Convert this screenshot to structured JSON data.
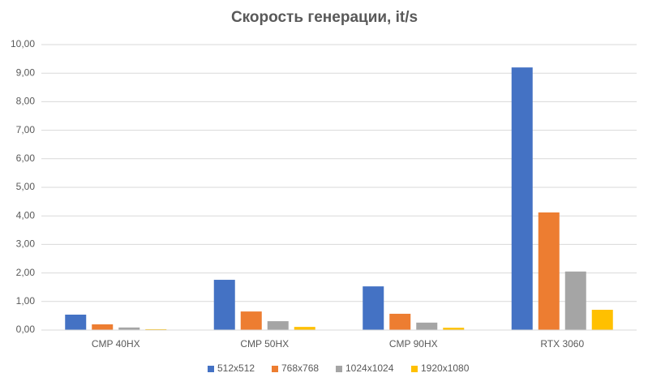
{
  "chart_data": {
    "type": "bar",
    "title": "Скорость генерации, it/s",
    "categories": [
      "CMP 40HX",
      "CMP 50HX",
      "CMP 90HX",
      "RTX 3060"
    ],
    "series": [
      {
        "name": "512x512",
        "color": "#4472c4",
        "values": [
          0.54,
          1.76,
          1.53,
          9.2
        ]
      },
      {
        "name": "768x768",
        "color": "#ed7d31",
        "values": [
          0.2,
          0.65,
          0.57,
          4.12
        ]
      },
      {
        "name": "1024x1024",
        "color": "#a5a5a5",
        "values": [
          0.09,
          0.31,
          0.26,
          2.05
        ]
      },
      {
        "name": "1920x1080",
        "color": "#ffc000",
        "values": [
          0.03,
          0.11,
          0.08,
          0.71
        ]
      }
    ],
    "ylim": [
      0,
      10
    ],
    "yticks": [
      {
        "value": 0,
        "label": "0,00"
      },
      {
        "value": 1,
        "label": "1,00"
      },
      {
        "value": 2,
        "label": "2,00"
      },
      {
        "value": 3,
        "label": "3,00"
      },
      {
        "value": 4,
        "label": "4,00"
      },
      {
        "value": 5,
        "label": "5,00"
      },
      {
        "value": 6,
        "label": "6,00"
      },
      {
        "value": 7,
        "label": "7,00"
      },
      {
        "value": 8,
        "label": "8,00"
      },
      {
        "value": 9,
        "label": "9,00"
      },
      {
        "value": 10,
        "label": "10,00"
      }
    ],
    "grid": true,
    "legend": "bottom"
  }
}
